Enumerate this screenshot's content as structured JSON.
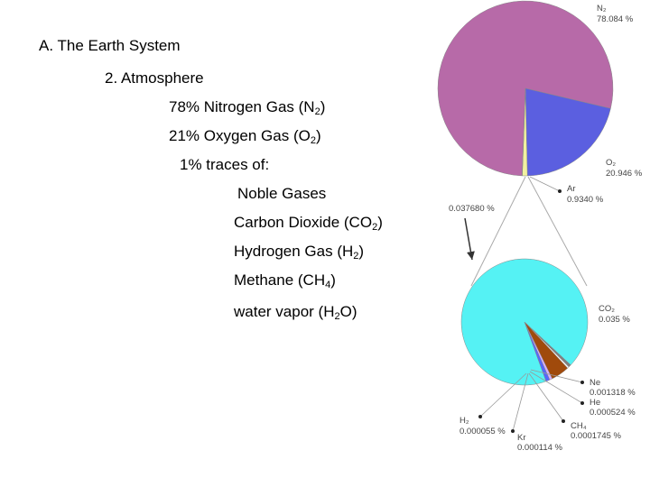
{
  "outline": {
    "heading": "A. The Earth System",
    "subheading": "2. Atmosphere",
    "n2": {
      "pre": "78% Nitrogen Gas (N",
      "sub": "2",
      "post": ")"
    },
    "o2": {
      "pre": "21% Oxygen Gas (O",
      "sub": "2",
      "post": ")"
    },
    "traces": "1% traces of:",
    "noble": "Noble Gases",
    "co2": {
      "pre": "Carbon Dioxide (CO",
      "sub": "2",
      "post": ")"
    },
    "h2": {
      "pre": "Hydrogen Gas (H",
      "sub": "2",
      "post": ")"
    },
    "ch4": {
      "pre": "Methane (CH",
      "sub": "4",
      "post": ")"
    },
    "water": {
      "pre": "water vapor (H",
      "sub": "2",
      "post": "O)"
    }
  },
  "chart_data": [
    {
      "type": "pie",
      "slices": [
        {
          "label": "N₂",
          "value": 78.084,
          "display": "78.084 %",
          "color": "#b76aa8"
        },
        {
          "label": "O₂",
          "value": 20.946,
          "display": "20.946 %",
          "color": "#5b5fe0"
        },
        {
          "label": "Ar",
          "value": 0.934,
          "display": "0.9340 %",
          "color": "#f1f1a0"
        },
        {
          "label": "",
          "value": 0.03768,
          "display": "0.037680 %",
          "color": "#f1f1a0"
        }
      ]
    },
    {
      "type": "pie",
      "slices": [
        {
          "label": "CO₂",
          "value": 0.035,
          "display": "0.035 %",
          "color": "#55f2f4"
        },
        {
          "label": "Ne",
          "value": 0.001318,
          "display": "0.001318 %",
          "color": "#7f7f7f"
        },
        {
          "label": "He",
          "value": 0.000524,
          "display": "0.000524 %",
          "color": "#ffffff"
        },
        {
          "label": "CH₄",
          "value": 0.0001745,
          "display": "0.0001745 %",
          "color": "#a04a0c"
        },
        {
          "label": "Kr",
          "value": 0.000114,
          "display": "0.000114 %",
          "color": "#d9b0ff"
        },
        {
          "label": "H₂",
          "value": 5.5e-05,
          "display": "0.000055 %",
          "color": "#5566ff"
        }
      ]
    }
  ]
}
